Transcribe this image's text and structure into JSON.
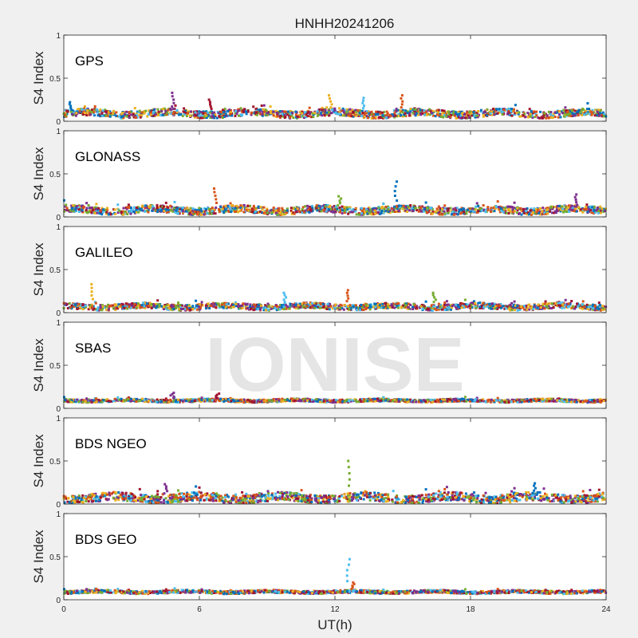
{
  "chart_data": {
    "type": "scatter",
    "title": "HNHH20241206",
    "xlabel": "UT(h)",
    "ylabel": "S4 Index",
    "xlim": [
      0,
      24
    ],
    "ylim": [
      0,
      1
    ],
    "xticks": [
      "0",
      "6",
      "12",
      "18",
      "24"
    ],
    "yticks": [
      "0",
      "0.5",
      "1"
    ],
    "grid": false,
    "watermark": "IONISE",
    "series_colors": [
      "#0072BD",
      "#D95319",
      "#EDB120",
      "#7E2F8E",
      "#77AC30",
      "#4DBEEE",
      "#A2142F"
    ],
    "panels": [
      {
        "name": "GPS",
        "baseline": 0.09,
        "spread": 0.05,
        "spikes": [
          [
            0.3,
            0.22
          ],
          [
            4.8,
            0.33
          ],
          [
            6.5,
            0.25
          ],
          [
            11.8,
            0.3
          ],
          [
            13.3,
            0.27
          ],
          [
            15.0,
            0.3
          ]
        ]
      },
      {
        "name": "GLONASS",
        "baseline": 0.08,
        "spread": 0.05,
        "spikes": [
          [
            6.7,
            0.33
          ],
          [
            12.2,
            0.24
          ],
          [
            14.7,
            0.41
          ],
          [
            22.7,
            0.26
          ]
        ]
      },
      {
        "name": "GALILEO",
        "baseline": 0.07,
        "spread": 0.04,
        "spikes": [
          [
            1.3,
            0.33
          ],
          [
            9.8,
            0.23
          ],
          [
            12.6,
            0.26
          ],
          [
            16.4,
            0.23
          ]
        ]
      },
      {
        "name": "SBAS",
        "baseline": 0.09,
        "spread": 0.02,
        "spikes": [
          [
            4.8,
            0.18
          ],
          [
            6.8,
            0.17
          ]
        ]
      },
      {
        "name": "BDS NGEO",
        "baseline": 0.07,
        "spread": 0.06,
        "spikes": [
          [
            12.6,
            0.5
          ],
          [
            20.8,
            0.24
          ],
          [
            4.5,
            0.23
          ]
        ]
      },
      {
        "name": "BDS GEO",
        "baseline": 0.09,
        "spread": 0.02,
        "spikes": [
          [
            12.6,
            0.47
          ],
          [
            12.8,
            0.2
          ]
        ]
      }
    ]
  }
}
